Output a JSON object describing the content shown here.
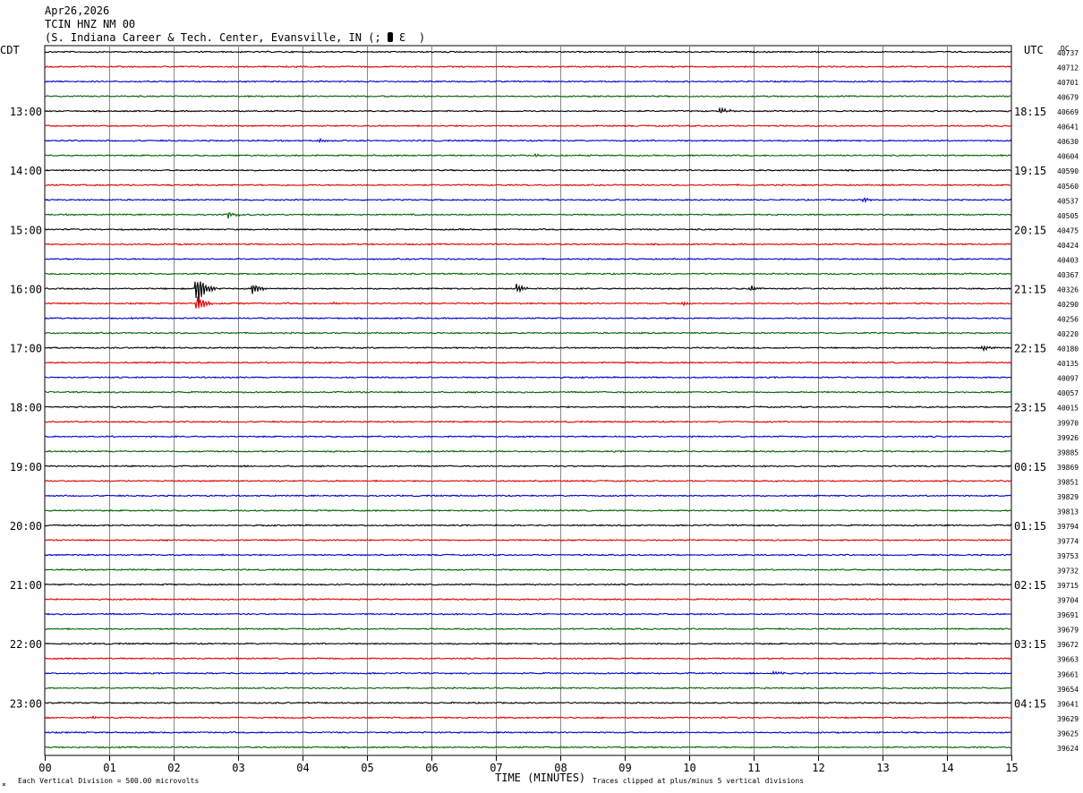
{
  "header": {
    "date": "Apr26,2026",
    "station": "TCIN HNZ NM 00",
    "location": "(S. Indiana Career & Tech. Center, Evansville, IN (;",
    "location_suffix": "Ɛ  )"
  },
  "left_timezone": "CDT",
  "right_timezone": "UTC",
  "dc_label": "DC",
  "colors": {
    "black": "#000000",
    "red": "#e00000",
    "blue": "#0000cc",
    "green": "#006400",
    "grid": "#888888"
  },
  "footer": {
    "scale_note": "Each Vertical Division =  500.00 microvolts",
    "clip_note": "Traces clipped at plus/minus 5 vertical divisions",
    "corner_mark": "×",
    "xlabel": "TIME (MINUTES)"
  },
  "chart_data": {
    "type": "line",
    "xlabel": "TIME (MINUTES)",
    "xlim": [
      0,
      15
    ],
    "x_ticks": [
      "00",
      "01",
      "02",
      "03",
      "04",
      "05",
      "06",
      "07",
      "08",
      "09",
      "10",
      "11",
      "12",
      "13",
      "14",
      "15"
    ],
    "trace_color_cycle": [
      "black",
      "red",
      "blue",
      "green"
    ],
    "left_hour_labels": [
      {
        "trace": 4,
        "label": "13:00"
      },
      {
        "trace": 8,
        "label": "14:00"
      },
      {
        "trace": 12,
        "label": "15:00"
      },
      {
        "trace": 16,
        "label": "16:00"
      },
      {
        "trace": 20,
        "label": "17:00"
      },
      {
        "trace": 24,
        "label": "18:00"
      },
      {
        "trace": 28,
        "label": "19:00"
      },
      {
        "trace": 32,
        "label": "20:00"
      },
      {
        "trace": 36,
        "label": "21:00"
      },
      {
        "trace": 40,
        "label": "22:00"
      },
      {
        "trace": 44,
        "label": "23:00"
      }
    ],
    "right_hour_labels": [
      {
        "trace": 4,
        "label": "18:15"
      },
      {
        "trace": 8,
        "label": "19:15"
      },
      {
        "trace": 12,
        "label": "20:15"
      },
      {
        "trace": 16,
        "label": "21:15"
      },
      {
        "trace": 20,
        "label": "22:15"
      },
      {
        "trace": 24,
        "label": "23:15"
      },
      {
        "trace": 28,
        "label": "00:15"
      },
      {
        "trace": 32,
        "label": "01:15"
      },
      {
        "trace": 36,
        "label": "02:15"
      },
      {
        "trace": 40,
        "label": "03:15"
      },
      {
        "trace": 44,
        "label": "04:15"
      }
    ],
    "dc_values": [
      "40737",
      "40712",
      "40701",
      "40679",
      "40669",
      "40641",
      "40630",
      "40604",
      "40590",
      "40560",
      "40537",
      "40505",
      "40475",
      "40424",
      "40403",
      "40367",
      "40326",
      "40290",
      "40256",
      "40220",
      "40180",
      "40135",
      "40097",
      "40057",
      "40015",
      "39970",
      "39926",
      "39885",
      "39869",
      "39851",
      "39829",
      "39813",
      "39794",
      "39774",
      "39753",
      "39732",
      "39715",
      "39704",
      "39691",
      "39679",
      "39672",
      "39663",
      "39661",
      "39654",
      "39641",
      "39629",
      "39625",
      "39624"
    ],
    "events": [
      {
        "trace": 4,
        "minute": 10.48,
        "amp": 0.35
      },
      {
        "trace": 6,
        "minute": 4.25,
        "amp": 0.25
      },
      {
        "trace": 7,
        "minute": 7.62,
        "amp": 0.2
      },
      {
        "trace": 10,
        "minute": 12.7,
        "amp": 0.25
      },
      {
        "trace": 11,
        "minute": 2.85,
        "amp": 0.35
      },
      {
        "trace": 16,
        "minute": 2.35,
        "amp": 2.0
      },
      {
        "trace": 16,
        "minute": 3.22,
        "amp": 0.6
      },
      {
        "trace": 16,
        "minute": 7.32,
        "amp": 0.5
      },
      {
        "trace": 16,
        "minute": 10.95,
        "amp": 0.3
      },
      {
        "trace": 17,
        "minute": 2.36,
        "amp": 0.9
      },
      {
        "trace": 17,
        "minute": 4.5,
        "amp": 0.2
      },
      {
        "trace": 17,
        "minute": 9.9,
        "amp": 0.2
      },
      {
        "trace": 20,
        "minute": 14.55,
        "amp": 0.3
      },
      {
        "trace": 42,
        "minute": 11.3,
        "amp": 0.2
      },
      {
        "trace": 45,
        "minute": 0.75,
        "amp": 0.2
      }
    ]
  }
}
